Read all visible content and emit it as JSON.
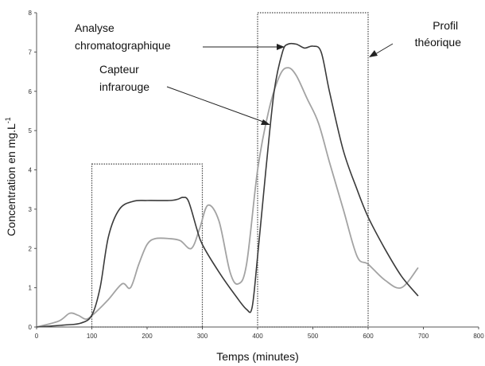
{
  "chart_data": {
    "type": "line",
    "xlabel": "Temps (minutes)",
    "ylabel": "Concentration en mg.L",
    "ylabel_sup": "-1",
    "xlim": [
      0,
      800
    ],
    "ylim": [
      0,
      8
    ],
    "x_ticks": [
      "0",
      "100",
      "200",
      "300",
      "400",
      "500",
      "600",
      "700",
      "800"
    ],
    "y_ticks": [
      "0",
      "1",
      "2",
      "3",
      "4",
      "5",
      "6",
      "7",
      "8"
    ],
    "grid": false,
    "series": [
      {
        "key": "chromatographic",
        "color": "#3a3a3a",
        "points": [
          [
            0,
            0
          ],
          [
            50,
            0.05
          ],
          [
            80,
            0.1
          ],
          [
            100,
            0.3
          ],
          [
            115,
            1.0
          ],
          [
            130,
            2.3
          ],
          [
            150,
            3.0
          ],
          [
            175,
            3.2
          ],
          [
            200,
            3.22
          ],
          [
            240,
            3.22
          ],
          [
            255,
            3.25
          ],
          [
            265,
            3.3
          ],
          [
            275,
            3.2
          ],
          [
            290,
            2.5
          ],
          [
            300,
            2.1
          ],
          [
            330,
            1.4
          ],
          [
            360,
            0.8
          ],
          [
            380,
            0.45
          ],
          [
            390,
            0.5
          ],
          [
            400,
            1.8
          ],
          [
            415,
            4.0
          ],
          [
            430,
            6.0
          ],
          [
            445,
            7.0
          ],
          [
            455,
            7.2
          ],
          [
            470,
            7.2
          ],
          [
            485,
            7.1
          ],
          [
            500,
            7.15
          ],
          [
            515,
            7.0
          ],
          [
            530,
            6.0
          ],
          [
            555,
            4.5
          ],
          [
            580,
            3.5
          ],
          [
            600,
            2.8
          ],
          [
            630,
            2.0
          ],
          [
            660,
            1.3
          ],
          [
            690,
            0.8
          ]
        ]
      },
      {
        "key": "infrared",
        "color": "#a3a3a3",
        "points": [
          [
            0,
            0
          ],
          [
            40,
            0.15
          ],
          [
            60,
            0.35
          ],
          [
            75,
            0.3
          ],
          [
            90,
            0.2
          ],
          [
            105,
            0.35
          ],
          [
            130,
            0.7
          ],
          [
            155,
            1.1
          ],
          [
            170,
            1.0
          ],
          [
            185,
            1.6
          ],
          [
            200,
            2.1
          ],
          [
            215,
            2.25
          ],
          [
            240,
            2.25
          ],
          [
            260,
            2.2
          ],
          [
            280,
            2.0
          ],
          [
            295,
            2.5
          ],
          [
            310,
            3.1
          ],
          [
            330,
            2.7
          ],
          [
            350,
            1.4
          ],
          [
            365,
            1.1
          ],
          [
            380,
            1.6
          ],
          [
            400,
            4.0
          ],
          [
            420,
            5.5
          ],
          [
            440,
            6.4
          ],
          [
            455,
            6.6
          ],
          [
            470,
            6.4
          ],
          [
            490,
            5.8
          ],
          [
            510,
            5.2
          ],
          [
            530,
            4.2
          ],
          [
            555,
            3.0
          ],
          [
            580,
            1.8
          ],
          [
            600,
            1.6
          ],
          [
            630,
            1.2
          ],
          [
            660,
            1.0
          ],
          [
            690,
            1.5
          ]
        ]
      }
    ],
    "profile_boxes": [
      {
        "x0": 100,
        "x1": 300,
        "height": 4.15
      },
      {
        "x0": 400,
        "x1": 600,
        "height": 8
      }
    ],
    "annotations": [
      {
        "key": "chrom",
        "lines": [
          "Analyse",
          "chromatographique"
        ]
      },
      {
        "key": "ir",
        "lines": [
          "Capteur",
          "infrarouge"
        ]
      },
      {
        "key": "profile",
        "lines": [
          "Profil",
          "théorique"
        ]
      }
    ]
  }
}
